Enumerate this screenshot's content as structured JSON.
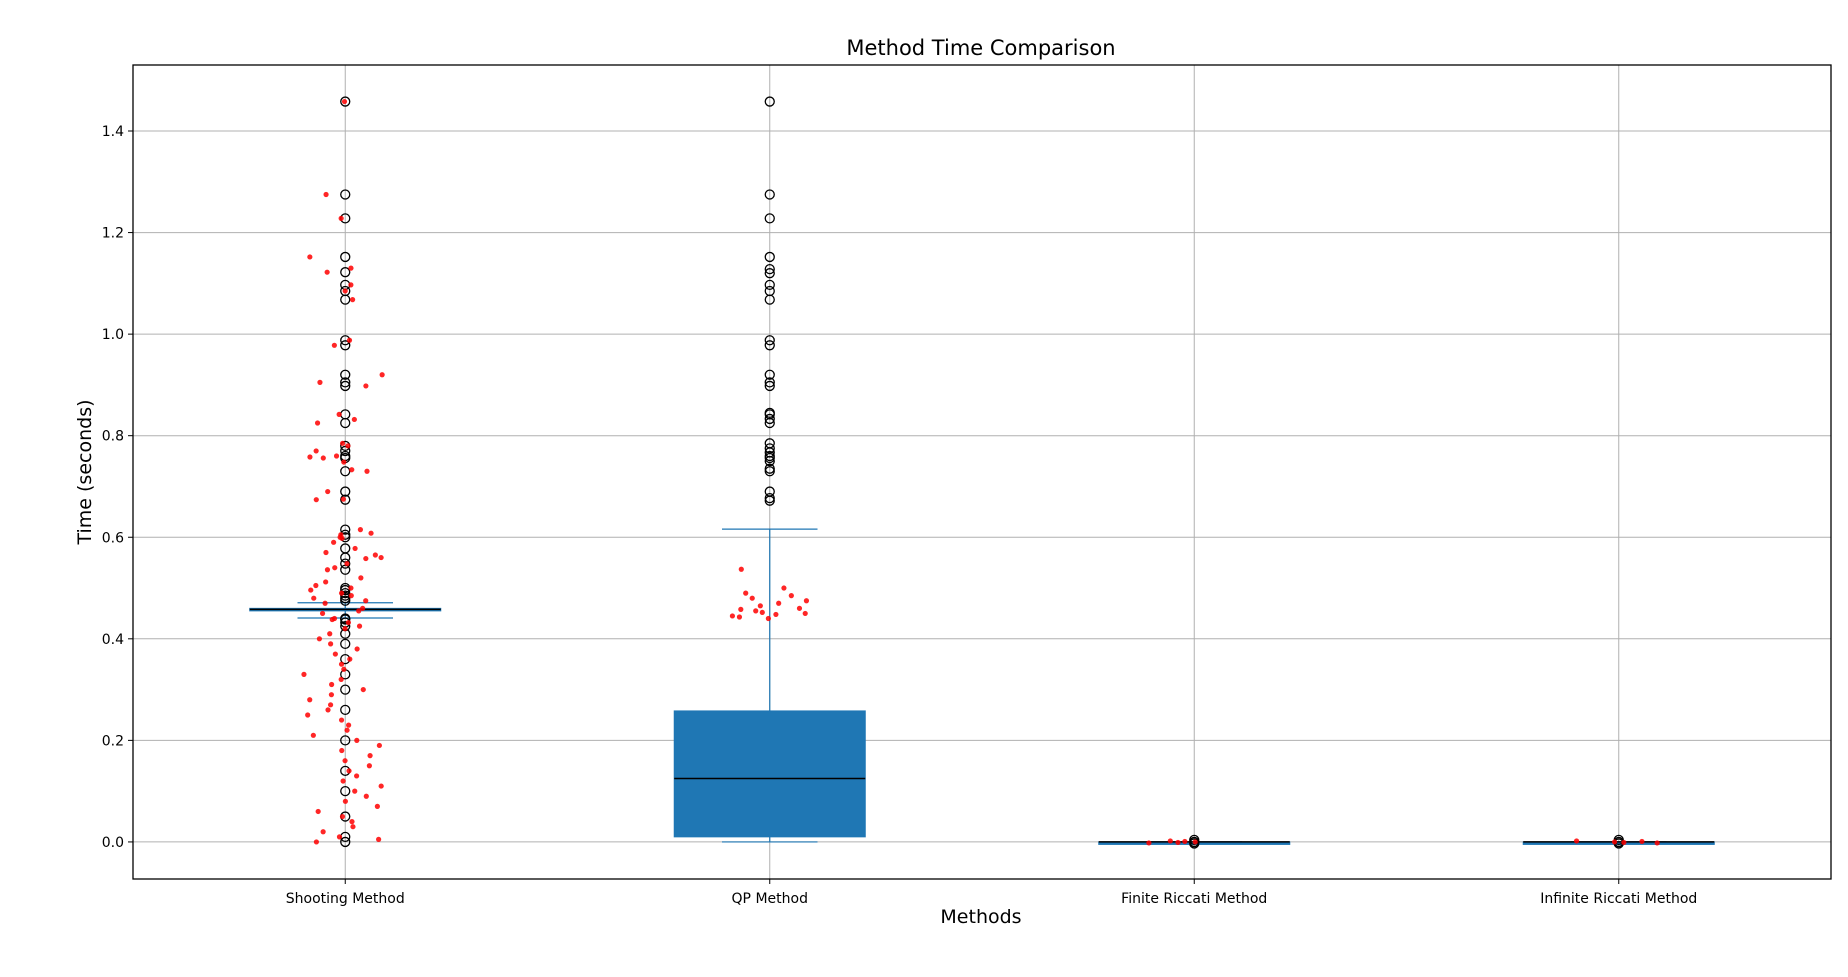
{
  "chart_data": {
    "type": "box",
    "title": "Method Time Comparison",
    "xlabel": "Methods",
    "ylabel": "Time (seconds)",
    "ylim": [
      -0.073,
      1.53
    ],
    "yticks": [
      0.0,
      0.2,
      0.4,
      0.6,
      0.8,
      1.0,
      1.2,
      1.4
    ],
    "ytick_labels": [
      "0.0",
      "0.2",
      "0.4",
      "0.6",
      "0.8",
      "1.0",
      "1.2",
      "1.4"
    ],
    "grid": true,
    "box_color": "#1f77b4",
    "median_color": "#000000",
    "point_color": "#ff0000",
    "categories": [
      "Shooting Method",
      "QP Method",
      "Finite Riccati Method",
      "Infinite Riccati Method"
    ],
    "boxes": [
      {
        "name": "Shooting Method",
        "q1": 0.455,
        "median": 0.458,
        "q3": 0.46,
        "whisker_low": 0.441,
        "whisker_high": 0.471,
        "outliers": [
          1.458,
          1.275,
          1.228,
          1.152,
          1.122,
          1.097,
          1.085,
          1.068,
          0.988,
          0.978,
          0.92,
          0.905,
          0.898,
          0.842,
          0.825,
          0.78,
          0.77,
          0.76,
          0.756,
          0.73,
          0.69,
          0.674,
          0.615,
          0.605,
          0.6,
          0.578,
          0.56,
          0.548,
          0.536,
          0.5,
          0.496,
          0.49,
          0.485,
          0.48,
          0.475,
          0.44,
          0.438,
          0.432,
          0.425,
          0.41,
          0.39,
          0.36,
          0.33,
          0.3,
          0.26,
          0.2,
          0.14,
          0.1,
          0.05,
          0.01,
          0.0
        ]
      },
      {
        "name": "QP Method",
        "q1": 0.01,
        "median": 0.125,
        "q3": 0.258,
        "whisker_low": 0.0,
        "whisker_high": 0.616,
        "outliers": [
          1.458,
          1.275,
          1.228,
          1.152,
          1.128,
          1.12,
          1.097,
          1.085,
          1.068,
          0.988,
          0.978,
          0.92,
          0.905,
          0.898,
          0.845,
          0.842,
          0.833,
          0.825,
          0.785,
          0.775,
          0.767,
          0.76,
          0.756,
          0.75,
          0.735,
          0.73,
          0.69,
          0.677,
          0.672
        ]
      },
      {
        "name": "Finite Riccati Method",
        "q1": 0.0,
        "median": 0.0,
        "q3": 0.0,
        "whisker_low": 0.0,
        "whisker_high": 0.0,
        "outliers": [
          0.004,
          0.0,
          -0.003
        ]
      },
      {
        "name": "Infinite Riccati Method",
        "q1": 0.0,
        "median": 0.0,
        "q3": 0.0,
        "whisker_low": 0.0,
        "whisker_high": 0.0,
        "outliers": [
          0.004,
          0.0,
          -0.003
        ]
      }
    ],
    "jitter_series": [
      {
        "name": "Shooting Method",
        "values": [
          1.458,
          1.275,
          1.228,
          1.152,
          1.13,
          1.122,
          1.097,
          1.085,
          1.068,
          0.988,
          0.978,
          0.92,
          0.905,
          0.898,
          0.842,
          0.832,
          0.825,
          0.785,
          0.78,
          0.77,
          0.76,
          0.758,
          0.756,
          0.748,
          0.733,
          0.73,
          0.69,
          0.675,
          0.674,
          0.615,
          0.608,
          0.605,
          0.6,
          0.598,
          0.59,
          0.578,
          0.57,
          0.565,
          0.56,
          0.558,
          0.548,
          0.54,
          0.536,
          0.52,
          0.512,
          0.505,
          0.5,
          0.496,
          0.49,
          0.485,
          0.48,
          0.475,
          0.47,
          0.46,
          0.455,
          0.45,
          0.44,
          0.438,
          0.432,
          0.425,
          0.42,
          0.41,
          0.4,
          0.39,
          0.38,
          0.37,
          0.36,
          0.35,
          0.34,
          0.33,
          0.32,
          0.31,
          0.3,
          0.29,
          0.28,
          0.27,
          0.26,
          0.25,
          0.24,
          0.23,
          0.22,
          0.21,
          0.2,
          0.19,
          0.18,
          0.17,
          0.16,
          0.15,
          0.14,
          0.13,
          0.12,
          0.11,
          0.1,
          0.09,
          0.08,
          0.07,
          0.06,
          0.05,
          0.04,
          0.03,
          0.02,
          0.01,
          0.005,
          0.0
        ]
      },
      {
        "name": "QP Method",
        "values": [
          0.537,
          0.5,
          0.49,
          0.485,
          0.48,
          0.475,
          0.47,
          0.465,
          0.46,
          0.458,
          0.455,
          0.452,
          0.45,
          0.448,
          0.445,
          0.443,
          0.44
        ]
      },
      {
        "name": "Finite Riccati Method",
        "values": [
          0.002,
          0.001,
          0.0,
          -0.001,
          -0.002
        ]
      },
      {
        "name": "Infinite Riccati Method",
        "values": [
          0.002,
          0.001,
          0.0,
          -0.001,
          -0.002
        ]
      }
    ]
  }
}
